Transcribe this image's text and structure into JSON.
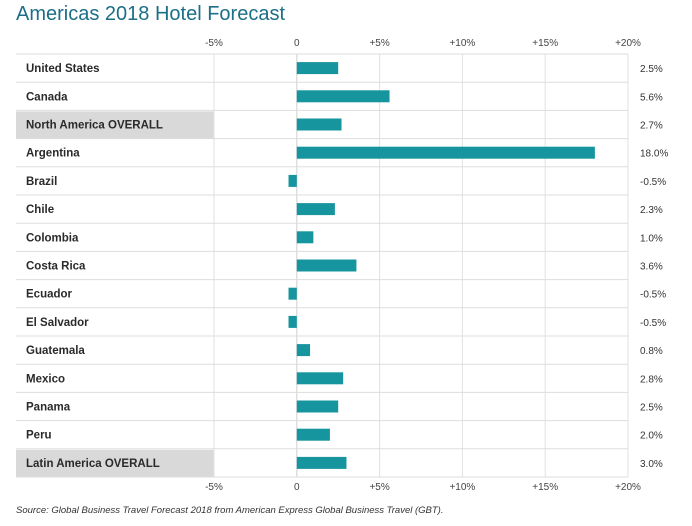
{
  "chart_data": {
    "type": "bar",
    "orientation": "horizontal",
    "title": "Americas 2018 Hotel Forecast",
    "categories": [
      "United States",
      "Canada",
      "North America OVERALL",
      "Argentina",
      "Brazil",
      "Chile",
      "Colombia",
      "Costa Rica",
      "Ecuador",
      "El Salvador",
      "Guatemala",
      "Mexico",
      "Panama",
      "Peru",
      "Latin America OVERALL"
    ],
    "values": [
      2.5,
      5.6,
      2.7,
      18.0,
      -0.5,
      2.3,
      1.0,
      3.6,
      -0.5,
      -0.5,
      0.8,
      2.8,
      2.5,
      2.0,
      3.0
    ],
    "value_labels": [
      "2.5%",
      "5.6%",
      "2.7%",
      "18.0%",
      "-0.5%",
      "2.3%",
      "1.0%",
      "3.6%",
      "-0.5%",
      "-0.5%",
      "0.8%",
      "2.8%",
      "2.5%",
      "2.0%",
      "3.0%"
    ],
    "highlighted_categories": [
      "North America OVERALL",
      "Latin America OVERALL"
    ],
    "xlim": [
      -5,
      20
    ],
    "ticks": [
      -5,
      0,
      5,
      10,
      15,
      20
    ],
    "tick_labels": [
      "-5%",
      "0",
      "+5%",
      "+10%",
      "+15%",
      "+20%"
    ],
    "tick_labels_position": "top-and-bottom",
    "grid": "vertical",
    "bar_color": "#17959e",
    "highlight_row_color": "#d9d9d9",
    "legend": "none"
  },
  "source": "Source: Global Business Travel Forecast 2018 from American Express Global Business Travel (GBT)."
}
